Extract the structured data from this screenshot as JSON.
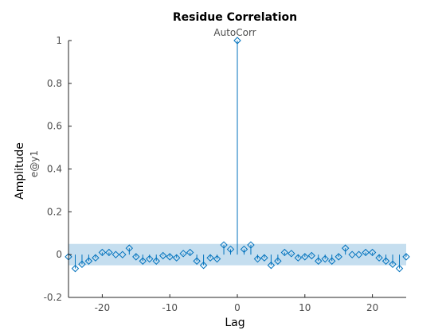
{
  "chart_data": {
    "type": "stem",
    "title": "Residue Correlation",
    "subtitle": "AutoCorr",
    "xlabel": "Lag",
    "ylabel": "Amplitude",
    "channel_label": "e@y1",
    "xlim": [
      -25,
      25
    ],
    "ylim": [
      -0.2,
      1
    ],
    "xticks": [
      -20,
      -10,
      0,
      10,
      20
    ],
    "yticks": [
      -0.2,
      0,
      0.2,
      0.4,
      0.6,
      0.8,
      1
    ],
    "xtick_labels": [
      "-20",
      "-10",
      "0",
      "10",
      "20"
    ],
    "ytick_labels": [
      "-0.2",
      "0",
      "0.2",
      "0.4",
      "0.6",
      "0.8",
      "1"
    ],
    "confidence_band": [
      -0.05,
      0.05
    ],
    "colors": {
      "stem": "#0072bd",
      "band": "#c5deef",
      "axis": "#262626"
    },
    "x": [
      -25,
      -24,
      -23,
      -22,
      -21,
      -20,
      -19,
      -18,
      -17,
      -16,
      -15,
      -14,
      -13,
      -12,
      -11,
      -10,
      -9,
      -8,
      -7,
      -6,
      -5,
      -4,
      -3,
      -2,
      -1,
      0,
      1,
      2,
      3,
      4,
      5,
      6,
      7,
      8,
      9,
      10,
      11,
      12,
      13,
      14,
      15,
      16,
      17,
      18,
      19,
      20,
      21,
      22,
      23,
      24,
      25
    ],
    "values": [
      -0.01,
      -0.065,
      -0.045,
      -0.03,
      -0.015,
      0.01,
      0.01,
      0.0,
      0.0,
      0.03,
      -0.01,
      -0.03,
      -0.02,
      -0.03,
      -0.005,
      -0.01,
      -0.015,
      0.005,
      0.01,
      -0.03,
      -0.05,
      -0.015,
      -0.02,
      0.045,
      0.025,
      1.0,
      0.025,
      0.045,
      -0.02,
      -0.015,
      -0.05,
      -0.03,
      0.01,
      0.005,
      -0.015,
      -0.01,
      -0.005,
      -0.03,
      -0.02,
      -0.03,
      -0.01,
      0.03,
      0.0,
      0.0,
      0.01,
      0.01,
      -0.015,
      -0.03,
      -0.045,
      -0.065,
      -0.01
    ]
  }
}
